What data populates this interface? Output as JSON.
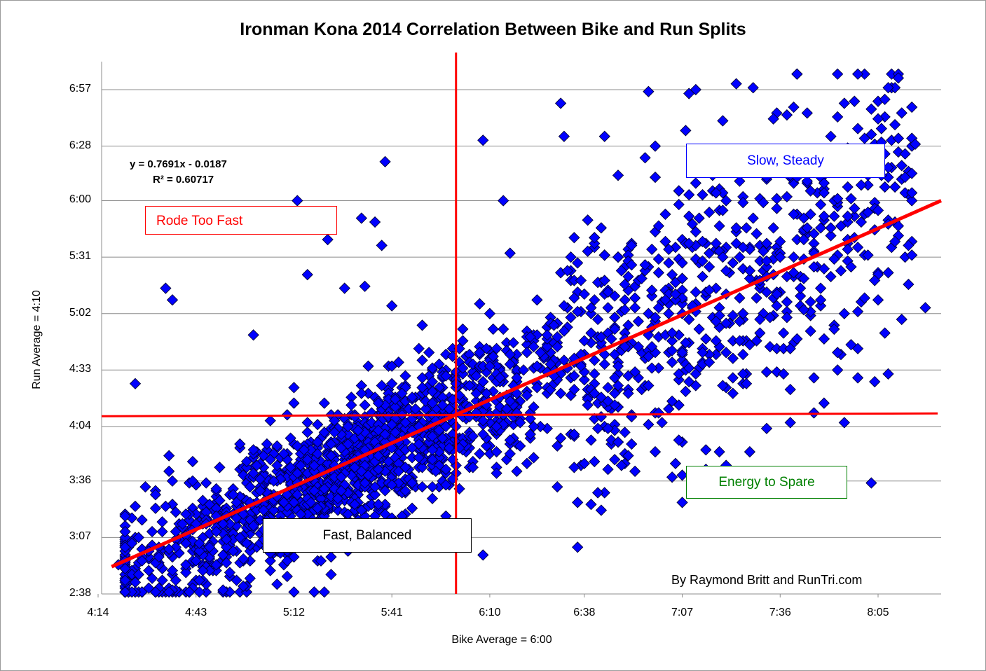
{
  "chart_data": {
    "type": "scatter",
    "title": "Ironman Kona 2014 Correlation Between Bike and Run Splits",
    "xlabel": "Bike Average = 6:00",
    "ylabel": "Run Average = 4:10",
    "x_ticks": [
      "4:14",
      "4:43",
      "5:12",
      "5:41",
      "6:10",
      "6:38",
      "7:07",
      "7:36",
      "8:05"
    ],
    "y_ticks": [
      "2:38",
      "3:07",
      "3:36",
      "4:04",
      "4:33",
      "5:02",
      "5:31",
      "6:00",
      "6:28",
      "6:57"
    ],
    "xlim": [
      "4:14",
      "8:27"
    ],
    "ylim": [
      "2:38",
      "7:08"
    ],
    "grid": "horizontal",
    "marker": {
      "shape": "diamond",
      "fill": "#0000FF",
      "stroke": "#000033"
    },
    "trendline": {
      "equation": "y = 0.7691x - 0.0187",
      "r_squared": "R² = 0.60717",
      "from": [
        "4:18",
        "2:52"
      ],
      "to": [
        "8:27",
        "6:00"
      ],
      "color": "#FF0000"
    },
    "reference_lines": {
      "bike_average": "6:00",
      "run_average": "4:10",
      "color": "#FF0000"
    },
    "annotations": {
      "rode_too_fast": "Rode Too Fast",
      "slow_steady": "Slow, Steady",
      "energy_to_spare": "Energy to Spare",
      "fast_balanced": "Fast, Balanced",
      "credit": "By Raymond Britt and RunTri.com"
    },
    "outliers": [
      [
        "4:20",
        "2:53"
      ],
      [
        "4:24",
        "3:04"
      ],
      [
        "4:25",
        "4:26"
      ],
      [
        "4:34",
        "5:15"
      ],
      [
        "4:36",
        "5:09"
      ],
      [
        "4:35",
        "3:49"
      ],
      [
        "4:36",
        "3:36"
      ],
      [
        "5:13",
        "6:00"
      ],
      [
        "5:16",
        "5:22"
      ],
      [
        "5:22",
        "5:40"
      ],
      [
        "5:27",
        "5:15"
      ],
      [
        "5:32",
        "5:51"
      ],
      [
        "5:33",
        "5:16"
      ],
      [
        "5:36",
        "5:49"
      ],
      [
        "5:38",
        "5:37"
      ],
      [
        "5:39",
        "6:20"
      ],
      [
        "5:41",
        "5:06"
      ],
      [
        "6:08",
        "6:31"
      ],
      [
        "6:14",
        "6:00"
      ],
      [
        "6:32",
        "6:33"
      ],
      [
        "7:09",
        "6:55"
      ],
      [
        "7:23",
        "7:00"
      ],
      [
        "7:28",
        "6:58"
      ],
      [
        "7:34",
        "6:42"
      ],
      [
        "7:40",
        "6:48"
      ],
      [
        "7:55",
        "6:50"
      ],
      [
        "8:07",
        "6:52"
      ],
      [
        "8:16",
        "6:29"
      ],
      [
        "8:19",
        "5:05"
      ],
      [
        "8:07",
        "4:52"
      ],
      [
        "8:03",
        "3:35"
      ],
      [
        "7:53",
        "4:33"
      ],
      [
        "7:46",
        "4:11"
      ],
      [
        "7:14",
        "3:52"
      ],
      [
        "7:18",
        "3:51"
      ],
      [
        "7:27",
        "3:51"
      ],
      [
        "6:43",
        "3:21"
      ],
      [
        "6:30",
        "3:33"
      ],
      [
        "6:08",
        "2:58"
      ],
      [
        "4:57",
        "2:42"
      ],
      [
        "5:00",
        "4:51"
      ],
      [
        "5:50",
        "4:56"
      ],
      [
        "7:07",
        "3:39"
      ],
      [
        "7:20",
        "3:44"
      ],
      [
        "4:39",
        "3:14"
      ]
    ]
  }
}
